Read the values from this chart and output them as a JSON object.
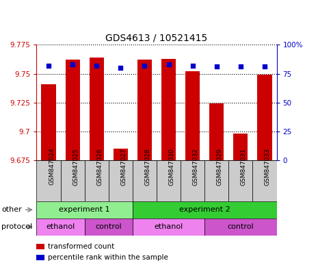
{
  "title": "GDS4613 / 10521415",
  "samples": [
    "GSM847024",
    "GSM847025",
    "GSM847026",
    "GSM847027",
    "GSM847028",
    "GSM847030",
    "GSM847032",
    "GSM847029",
    "GSM847031",
    "GSM847033"
  ],
  "transformed_counts": [
    9.741,
    9.762,
    9.764,
    9.685,
    9.762,
    9.763,
    9.752,
    9.724,
    9.698,
    9.749
  ],
  "percentile_ranks": [
    82,
    83,
    82,
    80,
    82,
    83,
    82,
    81,
    81,
    81
  ],
  "ylim_left": [
    9.675,
    9.775
  ],
  "ylim_right": [
    0,
    100
  ],
  "yticks_left": [
    9.675,
    9.7,
    9.725,
    9.75,
    9.775
  ],
  "yticks_right": [
    0,
    25,
    50,
    75,
    100
  ],
  "ytick_labels_left": [
    "9.675",
    "9.7",
    "9.725",
    "9.75",
    "9.775"
  ],
  "ytick_labels_right": [
    "0",
    "25",
    "50",
    "75",
    "100%"
  ],
  "bar_color": "#cc0000",
  "dot_color": "#0000cc",
  "grid_color": "#000000",
  "bar_bottom": 9.675,
  "experiment_groups": [
    {
      "label": "experiment 1",
      "start": 0,
      "end": 4,
      "color": "#90ee90"
    },
    {
      "label": "experiment 2",
      "start": 4,
      "end": 10,
      "color": "#33cc33"
    }
  ],
  "protocol_groups": [
    {
      "label": "ethanol",
      "start": 0,
      "end": 2,
      "color": "#ee82ee"
    },
    {
      "label": "control",
      "start": 2,
      "end": 4,
      "color": "#cc55cc"
    },
    {
      "label": "ethanol",
      "start": 4,
      "end": 7,
      "color": "#ee82ee"
    },
    {
      "label": "control",
      "start": 7,
      "end": 10,
      "color": "#cc55cc"
    }
  ],
  "legend_items": [
    {
      "color": "#cc0000",
      "label": "transformed count"
    },
    {
      "color": "#0000cc",
      "label": "percentile rank within the sample"
    }
  ],
  "bar_color_left": "#cc0000",
  "ylabel_right_color": "#0000cc",
  "sample_label_bg": "#cccccc",
  "row_label_color": "#555555",
  "arrow_color": "#888888"
}
